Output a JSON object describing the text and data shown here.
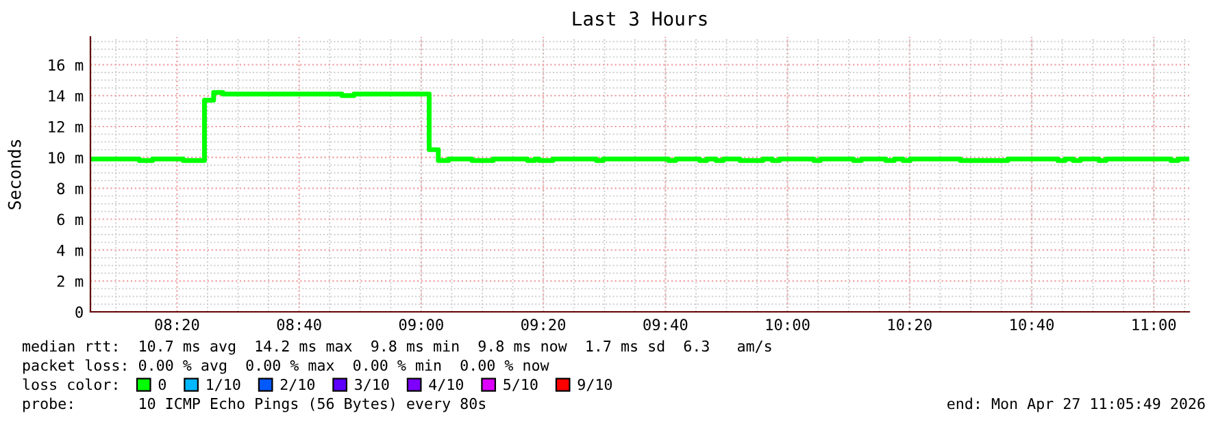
{
  "chart_data": {
    "type": "step",
    "title": "Last 3 Hours",
    "ylabel": "Seconds",
    "x": [
      8.0969,
      8.23,
      8.2667,
      8.35,
      8.4083,
      8.4333,
      8.4583,
      8.7833,
      8.8167,
      9.0217,
      9.0467,
      9.075,
      9.1383,
      9.1967,
      9.29,
      9.31,
      9.3217,
      9.36,
      9.4783,
      9.4967,
      9.675,
      9.695,
      9.76,
      9.78,
      9.805,
      9.825,
      9.87,
      9.9333,
      9.9583,
      9.9783,
      10.0717,
      10.09,
      10.18,
      10.2017,
      10.2683,
      10.2917,
      10.315,
      10.335,
      10.4717,
      10.6017,
      10.7383,
      10.7583,
      10.78,
      10.8,
      10.85,
      10.87,
      11.0467,
      11.0667,
      11.0969
    ],
    "series": [
      {
        "name": "0",
        "color": "#00ff00",
        "values": [
          9.9,
          9.8,
          9.9,
          9.8,
          13.7,
          14.2,
          14.1,
          14.0,
          14.1,
          10.5,
          9.8,
          9.9,
          9.8,
          9.9,
          9.8,
          9.9,
          9.8,
          9.9,
          9.8,
          9.9,
          9.8,
          9.9,
          9.8,
          9.9,
          9.8,
          9.9,
          9.8,
          9.9,
          9.8,
          9.9,
          9.8,
          9.9,
          9.8,
          9.9,
          9.8,
          9.9,
          9.8,
          9.9,
          9.8,
          9.9,
          9.8,
          9.9,
          9.8,
          9.9,
          9.8,
          9.9,
          9.8,
          9.9,
          9.9
        ]
      },
      {
        "name": "1/10",
        "color": "#00b8ff",
        "values": [
          null,
          null,
          null,
          null,
          null,
          null,
          null,
          null,
          null,
          null,
          null,
          null,
          null,
          null,
          null,
          null,
          null,
          null,
          null,
          null,
          null,
          null,
          null,
          null,
          null,
          null,
          null,
          null,
          null,
          null,
          null,
          null,
          null,
          null,
          null,
          null,
          null,
          null,
          null,
          null,
          null,
          null,
          null,
          null,
          null,
          null,
          null,
          null,
          null
        ]
      },
      {
        "name": "2/10",
        "color": "#0059ff",
        "values": [
          null,
          null,
          null,
          null,
          null,
          null,
          null,
          null,
          null,
          null,
          null,
          null,
          null,
          null,
          null,
          null,
          null,
          null,
          null,
          null,
          null,
          null,
          null,
          null,
          null,
          null,
          null,
          null,
          null,
          null,
          null,
          null,
          null,
          null,
          null,
          null,
          null,
          null,
          null,
          null,
          null,
          null,
          null,
          null,
          null,
          null,
          null,
          null,
          null
        ]
      },
      {
        "name": "3/10",
        "color": "#5e00ff",
        "values": [
          null,
          null,
          null,
          null,
          null,
          null,
          null,
          null,
          null,
          null,
          null,
          null,
          null,
          null,
          null,
          null,
          null,
          null,
          null,
          null,
          null,
          null,
          null,
          null,
          null,
          null,
          null,
          null,
          null,
          null,
          null,
          null,
          null,
          null,
          null,
          null,
          null,
          null,
          null,
          null,
          null,
          null,
          null,
          null,
          null,
          null,
          null,
          null,
          null
        ]
      },
      {
        "name": "4/10",
        "color": "#7e00ff",
        "values": [
          null,
          null,
          null,
          null,
          null,
          null,
          null,
          null,
          null,
          null,
          null,
          null,
          null,
          null,
          null,
          null,
          null,
          null,
          null,
          null,
          null,
          null,
          null,
          null,
          null,
          null,
          null,
          null,
          null,
          null,
          null,
          null,
          null,
          null,
          null,
          null,
          null,
          null,
          null,
          null,
          null,
          null,
          null,
          null,
          null,
          null,
          null,
          null,
          null
        ]
      },
      {
        "name": "5/10",
        "color": "#dd00ff",
        "values": [
          null,
          null,
          null,
          null,
          null,
          null,
          null,
          null,
          null,
          null,
          null,
          null,
          null,
          null,
          null,
          null,
          null,
          null,
          null,
          null,
          null,
          null,
          null,
          null,
          null,
          null,
          null,
          null,
          null,
          null,
          null,
          null,
          null,
          null,
          null,
          null,
          null,
          null,
          null,
          null,
          null,
          null,
          null,
          null,
          null,
          null,
          null,
          null,
          null
        ]
      },
      {
        "name": "9/10",
        "color": "#ff0000",
        "values": [
          null,
          null,
          null,
          null,
          null,
          null,
          null,
          null,
          null,
          null,
          null,
          null,
          null,
          null,
          null,
          null,
          null,
          null,
          null,
          null,
          null,
          null,
          null,
          null,
          null,
          null,
          null,
          null,
          null,
          null,
          null,
          null,
          null,
          null,
          null,
          null,
          null,
          null,
          null,
          null,
          null,
          null,
          null,
          null,
          null,
          null,
          null,
          null,
          null
        ]
      }
    ],
    "legend_title": "loss color:",
    "legend": "bottom left",
    "xlim": [
      8.0969,
      11.0969
    ],
    "xticks": [
      {
        "value": 8.3333,
        "label": "08:20"
      },
      {
        "value": 8.6667,
        "label": "08:40"
      },
      {
        "value": 9.0,
        "label": "09:00"
      },
      {
        "value": 9.3333,
        "label": "09:20"
      },
      {
        "value": 9.6667,
        "label": "09:40"
      },
      {
        "value": 10.0,
        "label": "10:00"
      },
      {
        "value": 10.3333,
        "label": "10:20"
      },
      {
        "value": 10.6667,
        "label": "10:40"
      },
      {
        "value": 11.0,
        "label": "11:00"
      }
    ],
    "ylim": [
      0,
      17.8
    ],
    "yticks": [
      0,
      {
        "value": 2,
        "label": "2 m"
      },
      {
        "value": 4,
        "label": "4 m"
      },
      {
        "value": 6,
        "label": "6 m"
      },
      {
        "value": 8,
        "label": "8 m"
      },
      {
        "value": 10,
        "label": "10 m"
      },
      {
        "value": 12,
        "label": "12 m"
      },
      {
        "value": 14,
        "label": "14 m"
      },
      {
        "value": 16,
        "label": "16 m"
      }
    ],
    "grid": true,
    "annotations": [
      "median rtt:  10.7 ms avg  14.2 ms max  9.8 ms min  9.8 ms now  1.7 ms sd  6.3   am/s",
      "packet loss: 0.00 % avg  0.00 % max  0.00 % min  0.00 % now",
      "probe:       10 ICMP Echo Pings (56 Bytes) every 80s",
      "end: Mon Apr 27 11:05:49 2026"
    ]
  }
}
